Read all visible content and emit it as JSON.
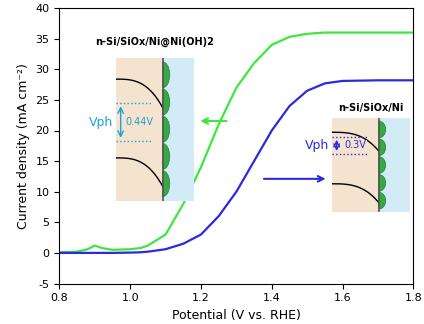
{
  "chart_data": {
    "type": "line",
    "xlabel": "Potential (V vs. RHE)",
    "ylabel": "Current density (mA cm⁻²)",
    "xlim": [
      0.8,
      1.8
    ],
    "xticks": [
      0.8,
      1.0,
      1.2,
      1.4,
      1.6,
      1.8
    ],
    "ylim": [
      -5,
      40
    ],
    "yticks": [
      -5,
      0,
      5,
      10,
      15,
      20,
      25,
      30,
      35,
      40
    ],
    "x": [
      0.8,
      0.85,
      0.88,
      0.9,
      0.92,
      0.95,
      1.0,
      1.03,
      1.05,
      1.1,
      1.15,
      1.2,
      1.25,
      1.3,
      1.35,
      1.4,
      1.45,
      1.5,
      1.55,
      1.6,
      1.7,
      1.8
    ],
    "series": [
      {
        "name": "n-Si/SiOx/Ni@Ni(OH)2",
        "color": "#3de83d",
        "annotations": [
          "Vph",
          "0.44V"
        ],
        "values": [
          0.1,
          0.2,
          0.6,
          1.2,
          0.8,
          0.5,
          0.6,
          0.8,
          1.2,
          3,
          8,
          14,
          21,
          27,
          31,
          34,
          35.3,
          35.8,
          36,
          36,
          36,
          36
        ]
      },
      {
        "name": "n-Si/SiOx/Ni",
        "color": "#2b2bdd",
        "annotations": [
          "Vph",
          "0.3V"
        ],
        "values": [
          0,
          0,
          0,
          0,
          0,
          0,
          0.05,
          0.1,
          0.2,
          0.6,
          1.5,
          3,
          6,
          10,
          15,
          20,
          24,
          26.5,
          27.7,
          28.1,
          28.2,
          28.2
        ]
      }
    ]
  }
}
